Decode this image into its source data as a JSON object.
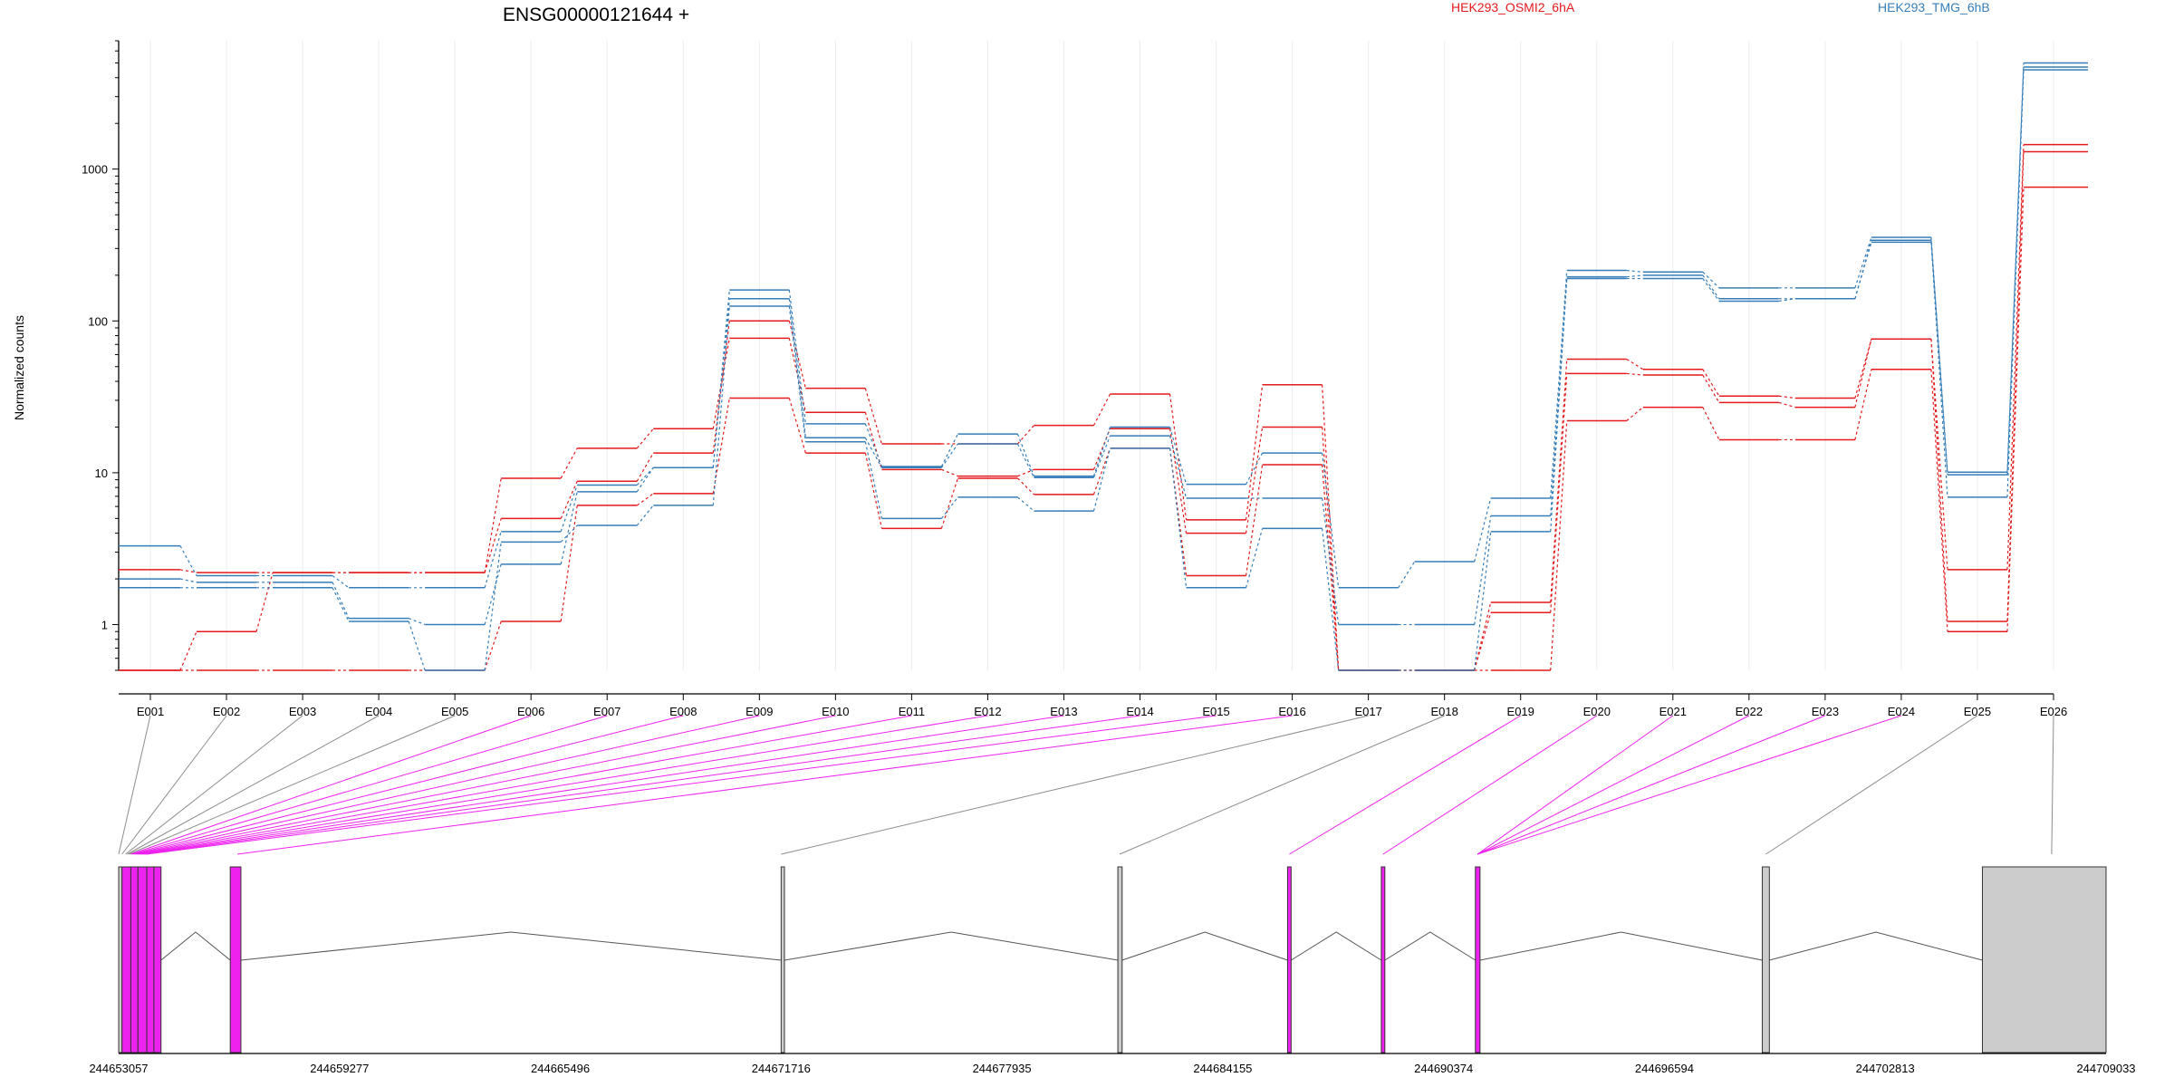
{
  "chart_data": {
    "type": "line",
    "title": "ENSG00000121644 +",
    "ylabel": "Normalized counts",
    "yscale": "log",
    "ylim": [
      0.5,
      7000
    ],
    "y_ticks": [
      1,
      10,
      100,
      1000
    ],
    "y_tick_labels": [
      "1",
      "10",
      "100",
      "1000"
    ],
    "categories": [
      "E001",
      "E002",
      "E003",
      "E004",
      "E005",
      "E006",
      "E007",
      "E008",
      "E009",
      "E010",
      "E011",
      "E012",
      "E013",
      "E014",
      "E015",
      "E016",
      "E017",
      "E018",
      "E019",
      "E020",
      "E021",
      "E022",
      "E023",
      "E024",
      "E025",
      "E026"
    ],
    "legend": [
      {
        "label": "HEK293_OSMI2_6hA",
        "color": "#e41a1c"
      },
      {
        "label": "HEK293_TMG_6hB",
        "color": "#377eb8"
      }
    ],
    "series": [
      {
        "group": "HEK293_OSMI2_6hA",
        "color": "#e41a1c",
        "values": [
          2.3,
          2.2,
          2.2,
          2.2,
          2.2,
          5.0,
          8.8,
          13.5,
          100,
          36,
          15.5,
          15.5,
          20.5,
          33,
          4.9,
          38,
          0.5,
          0.5,
          1.4,
          56,
          48,
          32,
          31,
          76,
          2.3,
          1450
        ]
      },
      {
        "group": "HEK293_OSMI2_6hA",
        "color": "#e41a1c",
        "values": [
          0.5,
          0.9,
          2.2,
          2.2,
          2.2,
          9.2,
          14.5,
          19.5,
          77,
          25,
          10.5,
          9.5,
          10.5,
          19.5,
          4.0,
          20,
          0.5,
          0.5,
          1.2,
          45,
          44,
          29,
          27,
          76,
          1.05,
          1300
        ]
      },
      {
        "group": "HEK293_OSMI2_6hA",
        "color": "#e41a1c",
        "values": [
          0.5,
          0.5,
          0.5,
          0.5,
          0.5,
          1.05,
          6.1,
          7.3,
          31,
          13.5,
          4.3,
          9.2,
          7.2,
          14.5,
          2.1,
          11.3,
          0.5,
          0.5,
          0.5,
          22,
          27,
          16.5,
          16.5,
          48,
          0.9,
          760
        ]
      },
      {
        "group": "HEK293_TMG_6hB",
        "color": "#377eb8",
        "values": [
          3.3,
          2.1,
          2.1,
          1.75,
          1.75,
          4.1,
          8.3,
          10.8,
          160,
          21,
          11,
          18,
          9.5,
          20,
          8.4,
          13.5,
          1.75,
          2.6,
          6.8,
          215,
          210,
          165,
          165,
          355,
          10.1,
          5000
        ]
      },
      {
        "group": "HEK293_TMG_6hB",
        "color": "#377eb8",
        "values": [
          2.0,
          1.9,
          1.9,
          1.1,
          1.0,
          2.5,
          7.5,
          10.8,
          140,
          17,
          10.8,
          15.5,
          9.3,
          17.5,
          6.8,
          6.8,
          1.0,
          1.0,
          5.2,
          195,
          200,
          140,
          140,
          340,
          9.7,
          4700
        ]
      },
      {
        "group": "HEK293_TMG_6hB",
        "color": "#377eb8",
        "values": [
          1.75,
          1.75,
          1.75,
          1.05,
          0.5,
          3.5,
          4.5,
          6.1,
          125,
          16,
          5.0,
          6.9,
          5.6,
          14.5,
          1.75,
          4.3,
          0.5,
          0.5,
          4.1,
          190,
          190,
          135,
          140,
          330,
          6.9,
          4500
        ]
      }
    ],
    "gene_model": {
      "coordinate_labels": [
        "244653057",
        "244659277",
        "244665496",
        "244671716",
        "244677935",
        "244684155",
        "244690374",
        "244696594",
        "244702813",
        "244709033"
      ],
      "x_start": 244653057,
      "x_end": 244709033,
      "exon_highlight_color": "#ee22ee",
      "exon_plain_color": "#cccccc",
      "exons": [
        {
          "start": 244653057,
          "end": 244653150,
          "highlight": false
        },
        {
          "start": 244653150,
          "end": 244653400,
          "highlight": true
        },
        {
          "start": 244653400,
          "end": 244653600,
          "highlight": true
        },
        {
          "start": 244653600,
          "end": 244653850,
          "highlight": true
        },
        {
          "start": 244653850,
          "end": 244654050,
          "highlight": true
        },
        {
          "start": 244654050,
          "end": 244654250,
          "highlight": true
        },
        {
          "start": 244656200,
          "end": 244656500,
          "highlight": true
        },
        {
          "start": 244671716,
          "end": 244671810,
          "highlight": false
        },
        {
          "start": 244681200,
          "end": 244681320,
          "highlight": false
        },
        {
          "start": 244685980,
          "end": 244686080,
          "highlight": true
        },
        {
          "start": 244688620,
          "end": 244688720,
          "highlight": true
        },
        {
          "start": 244691270,
          "end": 244691400,
          "highlight": true
        },
        {
          "start": 244699350,
          "end": 244699550,
          "highlight": false
        },
        {
          "start": 244705550,
          "end": 244709033,
          "highlight": false
        }
      ],
      "exon_links": [
        {
          "exon": "E001",
          "pos": 244653057,
          "highlight": false
        },
        {
          "exon": "E002",
          "pos": 244653150,
          "highlight": false
        },
        {
          "exon": "E003",
          "pos": 244653250,
          "highlight": false
        },
        {
          "exon": "E004",
          "pos": 244653300,
          "highlight": false
        },
        {
          "exon": "E005",
          "pos": 244653350,
          "highlight": false
        },
        {
          "exon": "E006",
          "pos": 244653400,
          "highlight": true
        },
        {
          "exon": "E007",
          "pos": 244653450,
          "highlight": true
        },
        {
          "exon": "E008",
          "pos": 244653500,
          "highlight": true
        },
        {
          "exon": "E009",
          "pos": 244653550,
          "highlight": true
        },
        {
          "exon": "E010",
          "pos": 244653600,
          "highlight": true
        },
        {
          "exon": "E011",
          "pos": 244653650,
          "highlight": true
        },
        {
          "exon": "E012",
          "pos": 244653700,
          "highlight": true
        },
        {
          "exon": "E013",
          "pos": 244653750,
          "highlight": true
        },
        {
          "exon": "E014",
          "pos": 244653800,
          "highlight": true
        },
        {
          "exon": "E015",
          "pos": 244653850,
          "highlight": true
        },
        {
          "exon": "E016",
          "pos": 244656400,
          "highlight": true
        },
        {
          "exon": "E017",
          "pos": 244671716,
          "highlight": false
        },
        {
          "exon": "E018",
          "pos": 244681250,
          "highlight": false
        },
        {
          "exon": "E019",
          "pos": 244686030,
          "highlight": true
        },
        {
          "exon": "E020",
          "pos": 244688670,
          "highlight": true
        },
        {
          "exon": "E021",
          "pos": 244691330,
          "highlight": true
        },
        {
          "exon": "E022",
          "pos": 244691330,
          "highlight": true
        },
        {
          "exon": "E023",
          "pos": 244691330,
          "highlight": true
        },
        {
          "exon": "E024",
          "pos": 244691330,
          "highlight": true
        },
        {
          "exon": "E025",
          "pos": 244699450,
          "highlight": false
        },
        {
          "exon": "E026",
          "pos": 244707500,
          "highlight": false
        }
      ]
    }
  }
}
